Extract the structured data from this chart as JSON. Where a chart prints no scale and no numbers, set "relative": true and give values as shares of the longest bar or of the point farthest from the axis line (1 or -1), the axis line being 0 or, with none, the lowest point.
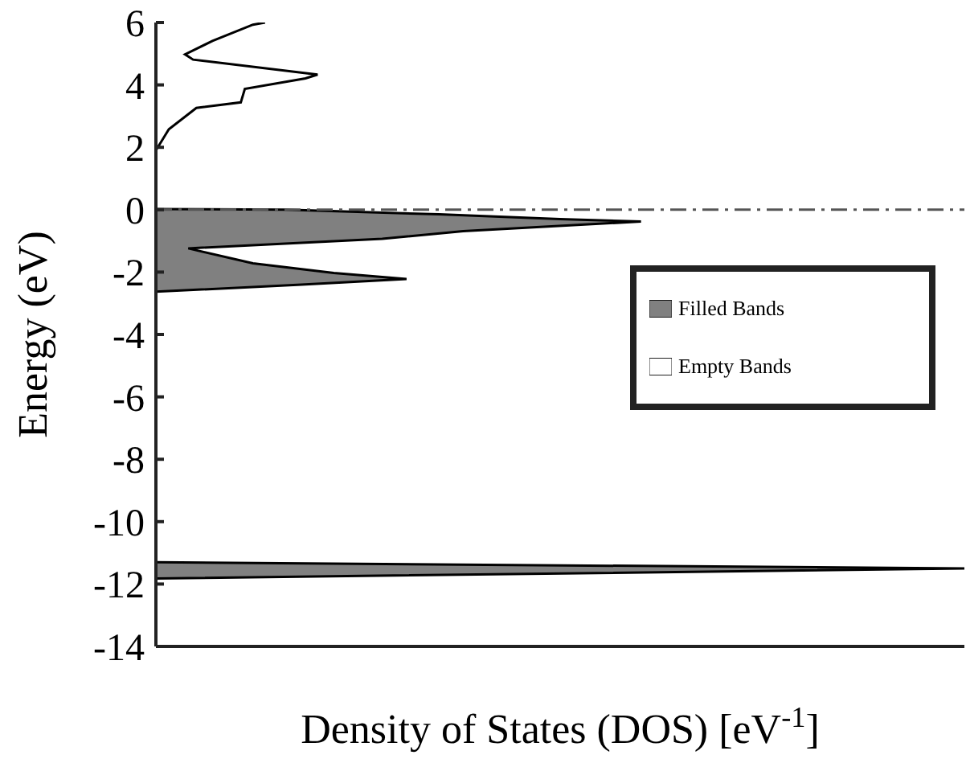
{
  "chart_data": {
    "type": "area",
    "orientation": "horizontal",
    "relative": true,
    "xlabel": "Density of States (DOS) [eV$^{-1}$]",
    "ylabel": "Energy (eV)",
    "ylim": [
      -14,
      6
    ],
    "yticks": [
      -14,
      -12,
      -10,
      -8,
      -6,
      -4,
      -2,
      0,
      2,
      4,
      6
    ],
    "legend": "right",
    "ref_lines": [
      {
        "axis": "y",
        "value": 0,
        "color": "#555555",
        "line_style": "dashed"
      }
    ],
    "series": [
      {
        "name": "Filled Bands",
        "color": "#808080",
        "x": [
          -11.82,
          -11.5,
          -11.3,
          -7,
          -2.7,
          -2.63,
          -2.4,
          -2.22,
          -2.03,
          -1.72,
          -1.24,
          -0.93,
          -0.69,
          -0.38,
          -0.3,
          -0.15,
          0,
          0.02
        ],
        "values": [
          0,
          1,
          0,
          null,
          0,
          0,
          0.18,
          0.31,
          0.22,
          0.12,
          0.04,
          0.28,
          0.38,
          0.6,
          0.5,
          0.35,
          0.16,
          0
        ]
      },
      {
        "name": "Empty Bands",
        "color": "#ffffff",
        "x": [
          1.9,
          2.58,
          3.26,
          3.44,
          3.87,
          4.21,
          4.33,
          4.81,
          4.98,
          5.41,
          5.93,
          6
        ],
        "values": [
          0,
          0.016,
          0.05,
          0.105,
          0.11,
          0.185,
          0.2,
          0.046,
          0.036,
          0.07,
          0.12,
          0.135
        ]
      }
    ]
  }
}
